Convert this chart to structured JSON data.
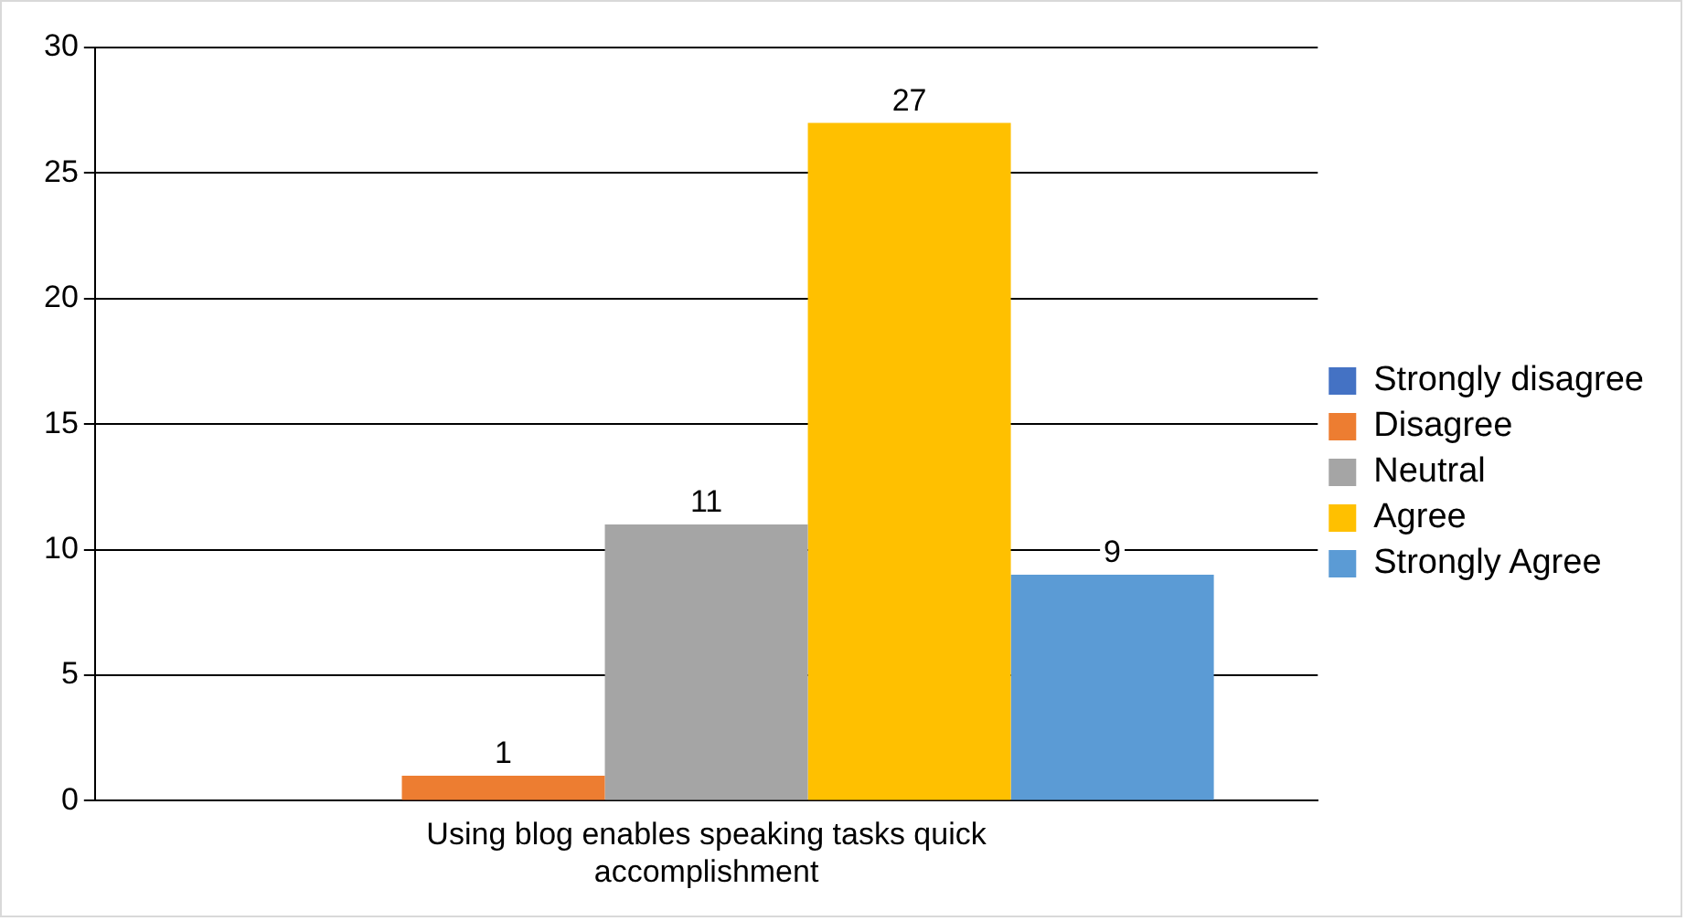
{
  "chart_data": {
    "type": "bar",
    "categories": [
      "Using blog enables speaking tasks quick accomplishment"
    ],
    "series": [
      {
        "name": "Strongly disagree",
        "color": "#4472c4",
        "values": [
          0
        ],
        "value_labels": [
          null
        ]
      },
      {
        "name": "Disagree",
        "color": "#ed7d31",
        "values": [
          1
        ],
        "value_labels": [
          "1"
        ]
      },
      {
        "name": "Neutral",
        "color": "#a5a5a5",
        "values": [
          11
        ],
        "value_labels": [
          "11"
        ]
      },
      {
        "name": "Agree",
        "color": "#ffc000",
        "values": [
          27
        ],
        "value_labels": [
          "27"
        ]
      },
      {
        "name": "Strongly Agree",
        "color": "#5b9bd5",
        "values": [
          9
        ],
        "value_labels": [
          "9"
        ]
      }
    ],
    "ylim": [
      0,
      30
    ],
    "yticks": [
      0,
      5,
      10,
      15,
      20,
      25,
      30
    ],
    "grid": "y",
    "legend": "right"
  }
}
